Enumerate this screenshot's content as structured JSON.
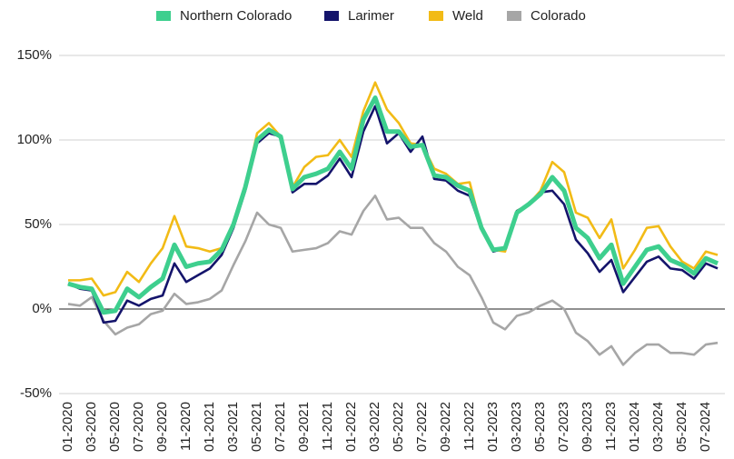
{
  "chart_data": {
    "type": "line",
    "categories": [
      "01-2020",
      null,
      "03-2020",
      null,
      "05-2020",
      null,
      "07-2020",
      null,
      "09-2020",
      null,
      "11-2020",
      null,
      "01-2021",
      null,
      "03-2021",
      null,
      "05-2021",
      null,
      "07-2021",
      null,
      "09-2021",
      null,
      "11-2021",
      null,
      "01-2022",
      null,
      "03-2022",
      null,
      "05-2022",
      null,
      "07-2022",
      null,
      "09-2022",
      null,
      "11-2022",
      null,
      "01-2023",
      null,
      "03-2023",
      null,
      "05-2023",
      null,
      "07-2023",
      null,
      "09-2023",
      null,
      "11-2023",
      null,
      "01-2024",
      null,
      "03-2024",
      null,
      "05-2024",
      null,
      "07-2024",
      null
    ],
    "series": [
      {
        "name": "Northern Colorado",
        "color": "#3ecf8e",
        "values": [
          15,
          13,
          12,
          -2,
          -1,
          12,
          7,
          13,
          18,
          38,
          25,
          27,
          28,
          35,
          50,
          72,
          100,
          106,
          102,
          71,
          78,
          80,
          83,
          93,
          83,
          112,
          125,
          105,
          105,
          96,
          97,
          79,
          78,
          73,
          70,
          48,
          35,
          36,
          57,
          62,
          68,
          78,
          70,
          48,
          42,
          30,
          38,
          15,
          25,
          35,
          37,
          29,
          26,
          21,
          30,
          27
        ]
      },
      {
        "name": "Larimer",
        "color": "#14146b",
        "values": [
          15,
          12,
          11,
          -8,
          -7,
          5,
          2,
          6,
          8,
          27,
          16,
          20,
          24,
          32,
          48,
          70,
          98,
          104,
          102,
          69,
          74,
          74,
          79,
          89,
          78,
          105,
          120,
          98,
          104,
          93,
          102,
          77,
          76,
          70,
          67,
          47,
          34,
          36,
          58,
          62,
          69,
          70,
          62,
          41,
          33,
          22,
          29,
          10,
          19,
          28,
          31,
          24,
          23,
          18,
          27,
          24
        ]
      },
      {
        "name": "Weld",
        "color": "#f2bb16",
        "values": [
          17,
          17,
          18,
          8,
          10,
          22,
          16,
          27,
          36,
          55,
          37,
          36,
          34,
          36,
          50,
          72,
          104,
          110,
          102,
          72,
          84,
          90,
          91,
          100,
          90,
          117,
          134,
          118,
          110,
          98,
          97,
          83,
          80,
          74,
          75,
          48,
          35,
          34,
          58,
          62,
          70,
          87,
          81,
          57,
          54,
          42,
          53,
          24,
          35,
          48,
          49,
          37,
          28,
          24,
          34,
          32
        ]
      },
      {
        "name": "Colorado",
        "color": "#a6a6a6",
        "values": [
          3,
          2,
          7,
          -7,
          -15,
          -11,
          -9,
          -3,
          -1,
          9,
          3,
          4,
          6,
          11,
          26,
          40,
          57,
          50,
          48,
          34,
          35,
          36,
          39,
          46,
          44,
          58,
          67,
          53,
          54,
          48,
          48,
          39,
          34,
          25,
          20,
          7,
          -8,
          -12,
          -4,
          -2,
          2,
          5,
          0,
          -14,
          -19,
          -27,
          -22,
          -33,
          -26,
          -21,
          -21,
          -26,
          -26,
          -27,
          -21,
          -20
        ]
      }
    ],
    "ylim": [
      -50,
      150
    ],
    "yticks": [
      {
        "value": -50,
        "label": "-50%"
      },
      {
        "value": 0,
        "label": "0%"
      },
      {
        "value": 50,
        "label": "50%"
      },
      {
        "value": 100,
        "label": "100%"
      },
      {
        "value": 150,
        "label": "150%"
      }
    ],
    "grid": true,
    "legend": "top"
  }
}
